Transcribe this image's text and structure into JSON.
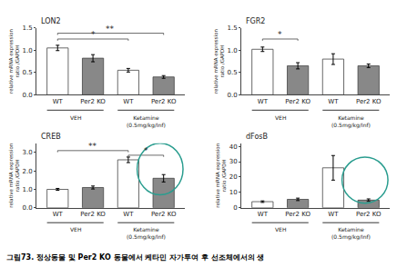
{
  "chart_data": [
    {
      "type": "bar",
      "title": "LON2",
      "ylabel": "relative mRNA expression\nratio /GAPDH",
      "categories": [
        "WT",
        "Per2 KO",
        "WT",
        "Per2 KO"
      ],
      "values": [
        1.05,
        0.82,
        0.55,
        0.4
      ],
      "errors": [
        0.06,
        0.08,
        0.04,
        0.03
      ],
      "colors": [
        "white",
        "#888888",
        "white",
        "#888888"
      ],
      "edge_color": "#444444",
      "ylim": [
        0.0,
        1.5
      ],
      "yticks": [
        {
          "value": 0,
          "label": "0.0"
        },
        0.5,
        {
          "value": 1,
          "label": "1.0"
        },
        1.5
      ],
      "grid": false,
      "groups": [
        {
          "label": "VEH",
          "from": 0,
          "to": 1
        },
        {
          "label": "Ketamine\n(0.5mg/kg/Inf)",
          "from": 2,
          "to": 3
        }
      ],
      "significance": [
        {
          "from": 0,
          "to": 2,
          "y": 1.25,
          "label": "*"
        },
        {
          "from": 0,
          "to": 3,
          "y": 1.38,
          "label": "**"
        }
      ],
      "bracket_color": "#444444"
    },
    {
      "type": "bar",
      "title": "FGR2",
      "ylabel": "relative mRNA expression\nratio /GAPDH",
      "categories": [
        "WT",
        "Per2 KO",
        "WT",
        "Per2 KO"
      ],
      "values": [
        1.02,
        0.65,
        0.8,
        0.65
      ],
      "errors": [
        0.05,
        0.07,
        0.12,
        0.04
      ],
      "colors": [
        "white",
        "#888888",
        "white",
        "#888888"
      ],
      "edge_color": "#444444",
      "ylim": [
        0.0,
        1.5
      ],
      "yticks": [
        {
          "value": 0,
          "label": "0.0"
        },
        0.5,
        {
          "value": 1,
          "label": "1.0"
        },
        1.5
      ],
      "grid": false,
      "groups": [
        {
          "label": "VEH",
          "from": 0,
          "to": 1
        },
        {
          "label": "Ketamine\n(0.5mg/kg/Inf)",
          "from": 2,
          "to": 3
        }
      ],
      "significance": [
        {
          "from": 0,
          "to": 1,
          "y": 1.25,
          "label": "*"
        }
      ],
      "bracket_color": "#444444"
    },
    {
      "type": "bar",
      "title": "CREB",
      "ylabel": "relative mRNA expression\nratio /GAPDH",
      "categories": [
        "WT",
        "Per2 KO",
        "WT",
        "Per2 KO"
      ],
      "values": [
        1.0,
        1.1,
        2.6,
        1.6
      ],
      "errors": [
        0.05,
        0.08,
        0.15,
        0.2
      ],
      "colors": [
        "white",
        "#888888",
        "white",
        "#888888"
      ],
      "edge_color": "#444444",
      "ylim": [
        0.0,
        3.5
      ],
      "yticks": [
        {
          "value": 0,
          "label": "0.0"
        },
        {
          "value": 1,
          "label": "1.0"
        },
        {
          "value": 2,
          "label": "2.0"
        },
        {
          "value": 3,
          "label": "3.0"
        }
      ],
      "grid": false,
      "groups": [
        {
          "label": "VEH",
          "from": 0,
          "to": 1
        },
        {
          "label": "Ketamine\n(0.5mg/kg/Inf)",
          "from": 2,
          "to": 3
        }
      ],
      "significance": [
        {
          "from": 0,
          "to": 2,
          "y": 3.1,
          "label": "**"
        },
        {
          "from": 2,
          "to": 3,
          "y": 2.85,
          "label": "*"
        }
      ],
      "bracket_color": "#444444",
      "highlight": {
        "category": 3,
        "y": 2.1,
        "height": 2.8,
        "color": "#2a9d8f"
      }
    },
    {
      "type": "bar",
      "title": "dFosB",
      "ylabel": "relative mRNA expression\nratio /GAPDH",
      "categories": [
        "WT",
        "Per2 KO",
        "WT",
        "Per2 KO"
      ],
      "values": [
        4.0,
        5.5,
        26.0,
        5.0
      ],
      "errors": [
        0.5,
        0.8,
        8.0,
        0.8
      ],
      "colors": [
        "white",
        "#888888",
        "white",
        "#888888"
      ],
      "edge_color": "#444444",
      "ylim": [
        0.0,
        42.0
      ],
      "yticks": [
        0,
        10,
        20,
        30,
        40
      ],
      "grid": false,
      "groups": [
        {
          "label": "VEH",
          "from": 0,
          "to": 1
        },
        {
          "label": "Ketamine\n(0.5mg/kg/Inf)",
          "from": 2,
          "to": 3
        }
      ],
      "significance": [],
      "bracket_color": "#444444",
      "highlight": {
        "category": 3,
        "y": 18.0,
        "height": 30.0,
        "color": "#2a9d8f"
      }
    }
  ],
  "caption": "그림73. 정상동물 및 Per2 KO 동물에서 케타민 자가투여 후 선조체에서의 생"
}
